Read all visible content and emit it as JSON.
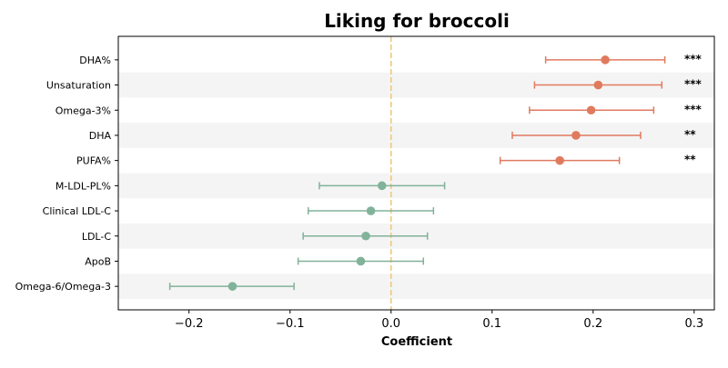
{
  "chart_data": {
    "type": "forest",
    "title": "Liking for broccoli",
    "xlabel": "Coefficient",
    "xlim": [
      -0.27,
      0.32
    ],
    "xticks": [
      -0.2,
      -0.1,
      0.0,
      0.1,
      0.2,
      0.3
    ],
    "xtick_labels": [
      "−0.2",
      "−0.1",
      "0.0",
      "0.1",
      "0.2",
      "0.3"
    ],
    "reference_line": 0.0,
    "alternating_row_shading": true,
    "colors": {
      "significant": "#e07a5f",
      "non_significant": "#81b29a",
      "reference_line": "#f2c57c",
      "row_shade": "#f4f4f4"
    },
    "rows": [
      {
        "label": "DHA%",
        "estimate": 0.212,
        "ci_low": 0.153,
        "ci_high": 0.271,
        "significance": "***",
        "significant": true
      },
      {
        "label": "Unsaturation",
        "estimate": 0.205,
        "ci_low": 0.142,
        "ci_high": 0.268,
        "significance": "***",
        "significant": true
      },
      {
        "label": "Omega-3%",
        "estimate": 0.198,
        "ci_low": 0.137,
        "ci_high": 0.26,
        "significance": "***",
        "significant": true
      },
      {
        "label": "DHA",
        "estimate": 0.183,
        "ci_low": 0.12,
        "ci_high": 0.247,
        "significance": "**",
        "significant": true
      },
      {
        "label": "PUFA%",
        "estimate": 0.167,
        "ci_low": 0.108,
        "ci_high": 0.226,
        "significance": "**",
        "significant": true
      },
      {
        "label": "M-LDL-PL%",
        "estimate": -0.009,
        "ci_low": -0.071,
        "ci_high": 0.053,
        "significance": "",
        "significant": false
      },
      {
        "label": "Clinical LDL-C",
        "estimate": -0.02,
        "ci_low": -0.082,
        "ci_high": 0.042,
        "significance": "",
        "significant": false
      },
      {
        "label": "LDL-C",
        "estimate": -0.025,
        "ci_low": -0.087,
        "ci_high": 0.036,
        "significance": "",
        "significant": false
      },
      {
        "label": "ApoB",
        "estimate": -0.03,
        "ci_low": -0.092,
        "ci_high": 0.032,
        "significance": "",
        "significant": false
      },
      {
        "label": "Omega-6/Omega-3",
        "estimate": -0.157,
        "ci_low": -0.219,
        "ci_high": -0.096,
        "significance": "",
        "significant": false
      }
    ]
  }
}
